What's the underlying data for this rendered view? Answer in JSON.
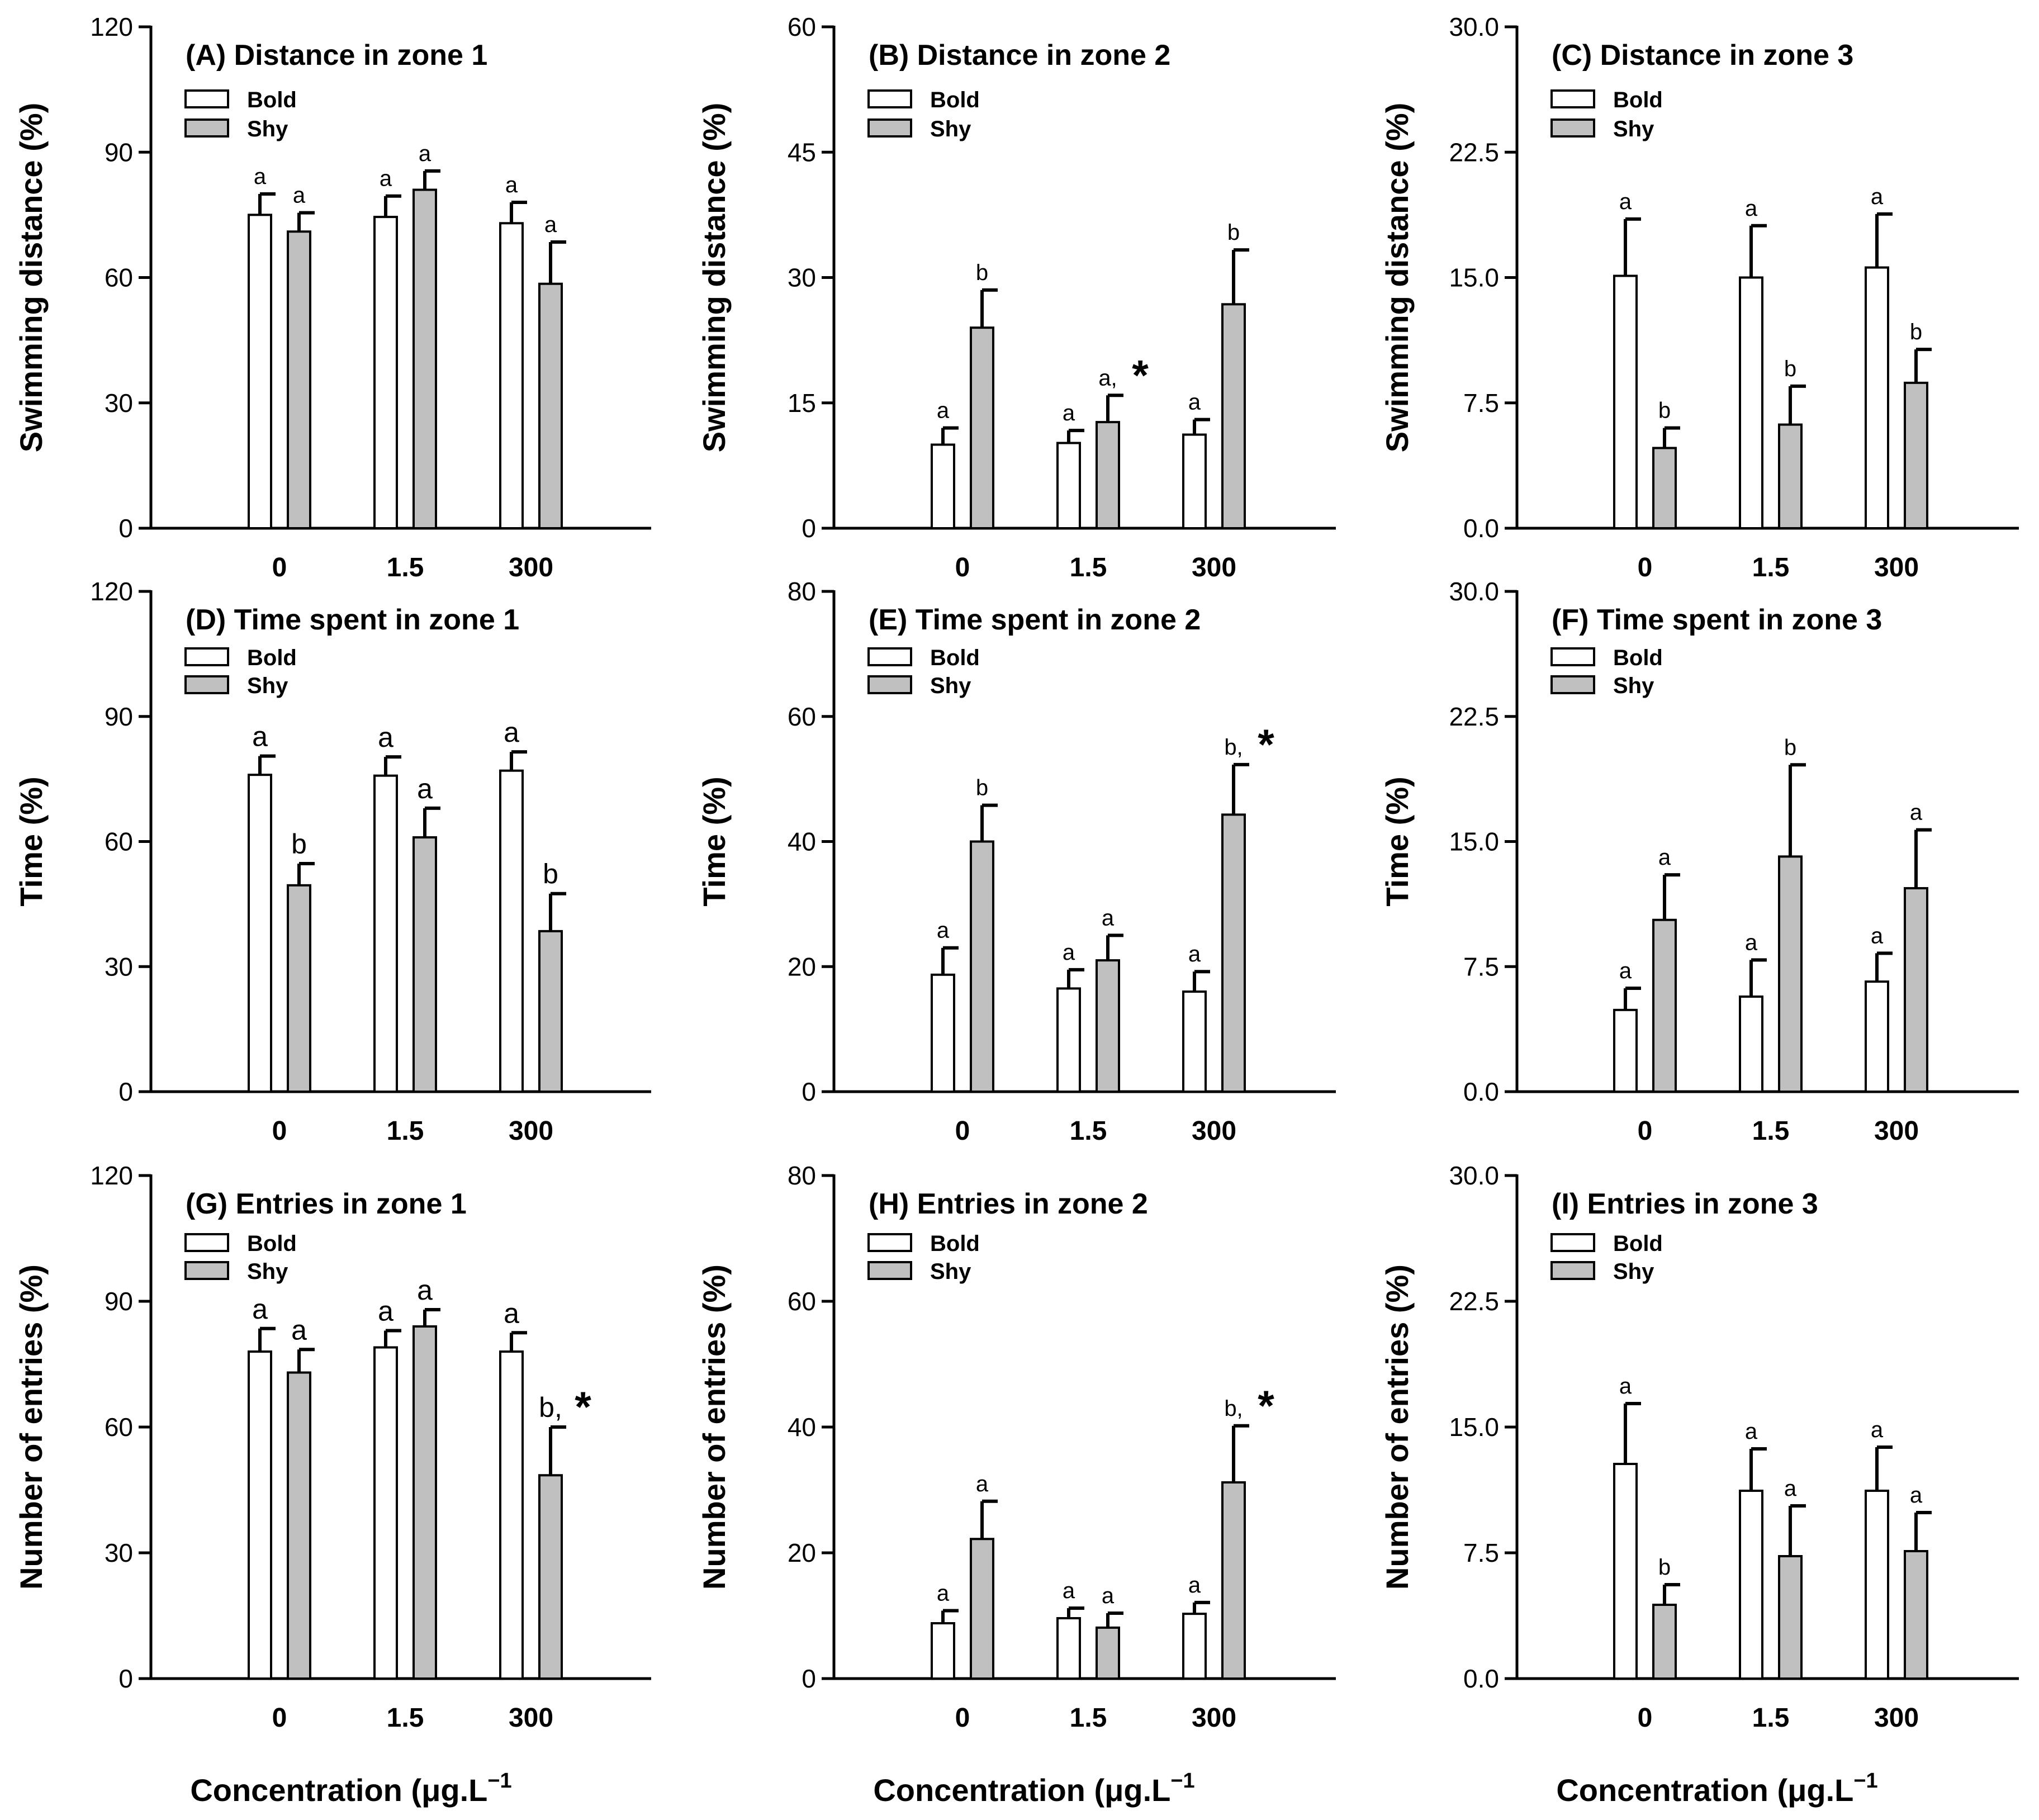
{
  "figure": {
    "xlabel": "Concentration (μg.L",
    "xlabel_sup": "−1",
    "legend": [
      "Bold",
      "Shy"
    ],
    "colors": {
      "bold": "#ffffff",
      "shy": "#c0c0c0",
      "ink": "#000000"
    }
  },
  "chart_data": [
    {
      "type": "bar",
      "panel": "A",
      "title": "(A) Distance in zone 1",
      "ylabel": "Swimming distance (%)",
      "categories": [
        "0",
        "1.5",
        "300"
      ],
      "ylim": [
        0,
        120
      ],
      "yticks": [
        "0",
        "30",
        "60",
        "90",
        "120"
      ],
      "series": [
        {
          "name": "Bold",
          "values": [
            75,
            74.5,
            73
          ],
          "errors": [
            5,
            5,
            5
          ],
          "labels": [
            "a",
            "a",
            "a"
          ]
        },
        {
          "name": "Shy",
          "values": [
            71,
            81,
            58.5
          ],
          "errors": [
            4.5,
            4.5,
            10
          ],
          "labels": [
            "a",
            "a",
            "a"
          ]
        }
      ],
      "stars": []
    },
    {
      "type": "bar",
      "panel": "B",
      "title": "(B) Distance in zone 2",
      "ylabel": "Swimming distance (%)",
      "categories": [
        "0",
        "1.5",
        "300"
      ],
      "ylim": [
        0,
        60
      ],
      "yticks": [
        "0",
        "15",
        "30",
        "45",
        "60"
      ],
      "series": [
        {
          "name": "Bold",
          "values": [
            10,
            10.2,
            11.2
          ],
          "errors": [
            2,
            1.5,
            1.8
          ],
          "labels": [
            "a",
            "a",
            "a"
          ]
        },
        {
          "name": "Shy",
          "values": [
            24,
            12.7,
            26.8
          ],
          "errors": [
            4.5,
            3.2,
            6.5
          ],
          "labels": [
            "b",
            "a,",
            "b"
          ]
        }
      ],
      "stars": [
        1
      ]
    },
    {
      "type": "bar",
      "panel": "C",
      "title": "(C) Distance in zone 3",
      "ylabel": "Swimming distance (%)",
      "categories": [
        "0",
        "1.5",
        "300"
      ],
      "ylim": [
        0,
        30
      ],
      "yticks": [
        "0.0",
        "7.5",
        "15.0",
        "22.5",
        "30.0"
      ],
      "series": [
        {
          "name": "Bold",
          "values": [
            15.1,
            15,
            15.6
          ],
          "errors": [
            3.4,
            3.1,
            3.2
          ],
          "labels": [
            "a",
            "a",
            "a"
          ]
        },
        {
          "name": "Shy",
          "values": [
            4.8,
            6.2,
            8.7
          ],
          "errors": [
            1.2,
            2.3,
            2
          ],
          "labels": [
            "b",
            "b",
            "b"
          ]
        }
      ],
      "stars": []
    },
    {
      "type": "bar",
      "panel": "D",
      "title": "(D) Time spent in zone 1",
      "ylabel": "Time (%)",
      "categories": [
        "0",
        "1.5",
        "300"
      ],
      "ylim": [
        0,
        120
      ],
      "yticks": [
        "0",
        "30",
        "60",
        "90",
        "120"
      ],
      "series": [
        {
          "name": "Bold",
          "values": [
            76,
            75.8,
            77
          ],
          "errors": [
            4.5,
            4.5,
            4.5
          ],
          "labels": [
            "a",
            "a",
            "a"
          ]
        },
        {
          "name": "Shy",
          "values": [
            49.5,
            61,
            38.5
          ],
          "errors": [
            5.2,
            7,
            9
          ],
          "labels": [
            "b",
            "a",
            "b"
          ]
        }
      ],
      "stars": []
    },
    {
      "type": "bar",
      "panel": "E",
      "title": "(E) Time spent in zone 2",
      "ylabel": "Time (%)",
      "categories": [
        "0",
        "1.5",
        "300"
      ],
      "ylim": [
        0,
        80
      ],
      "yticks": [
        "0",
        "20",
        "40",
        "60",
        "80"
      ],
      "series": [
        {
          "name": "Bold",
          "values": [
            18.7,
            16.5,
            16
          ],
          "errors": [
            4.3,
            3,
            3.2
          ],
          "labels": [
            "a",
            "a",
            "a"
          ]
        },
        {
          "name": "Shy",
          "values": [
            40,
            21,
            44.3
          ],
          "errors": [
            5.8,
            4,
            8
          ],
          "labels": [
            "b",
            "a",
            "b,"
          ]
        }
      ],
      "stars": [
        2
      ]
    },
    {
      "type": "bar",
      "panel": "F",
      "title": "(F) Time spent in zone 3",
      "ylabel": "Time (%)",
      "categories": [
        "0",
        "1.5",
        "300"
      ],
      "ylim": [
        0,
        30
      ],
      "yticks": [
        "0.0",
        "7.5",
        "15.0",
        "22.5",
        "30.0"
      ],
      "series": [
        {
          "name": "Bold",
          "values": [
            4.9,
            5.7,
            6.6
          ],
          "errors": [
            1.3,
            2.2,
            1.7
          ],
          "labels": [
            "a",
            "a",
            "a"
          ]
        },
        {
          "name": "Shy",
          "values": [
            10.3,
            14.1,
            12.2
          ],
          "errors": [
            2.7,
            5.5,
            3.5
          ],
          "labels": [
            "a",
            "b",
            "a"
          ]
        }
      ],
      "stars": []
    },
    {
      "type": "bar",
      "panel": "G",
      "title": "(G) Entries in zone 1",
      "ylabel": "Number of entries (%)",
      "categories": [
        "0",
        "1.5",
        "300"
      ],
      "ylim": [
        0,
        120
      ],
      "yticks": [
        "0",
        "30",
        "60",
        "90",
        "120"
      ],
      "series": [
        {
          "name": "Bold",
          "values": [
            78,
            79,
            78
          ],
          "errors": [
            5.5,
            4,
            4.5
          ],
          "labels": [
            "a",
            "a",
            "a"
          ]
        },
        {
          "name": "Shy",
          "values": [
            73,
            84,
            48.5
          ],
          "errors": [
            5.5,
            4,
            11.5
          ],
          "labels": [
            "a",
            "a",
            "b,"
          ]
        }
      ],
      "stars": [
        2
      ]
    },
    {
      "type": "bar",
      "panel": "H",
      "title": "(H) Entries in zone 2",
      "ylabel": "Number of entries (%)",
      "categories": [
        "0",
        "1.5",
        "300"
      ],
      "ylim": [
        0,
        80
      ],
      "yticks": [
        "0",
        "20",
        "40",
        "60",
        "80"
      ],
      "series": [
        {
          "name": "Bold",
          "values": [
            8.8,
            9.6,
            10.3
          ],
          "errors": [
            2,
            1.6,
            1.8
          ],
          "labels": [
            "a",
            "a",
            "a"
          ]
        },
        {
          "name": "Shy",
          "values": [
            22.2,
            8.1,
            31.2
          ],
          "errors": [
            6,
            2.3,
            9
          ],
          "labels": [
            "a",
            "a",
            "b,"
          ]
        }
      ],
      "stars": [
        2
      ]
    },
    {
      "type": "bar",
      "panel": "I",
      "title": "(I) Entries in zone 3",
      "ylabel": "Number of entries (%)",
      "categories": [
        "0",
        "1.5",
        "300"
      ],
      "ylim": [
        0,
        30
      ],
      "yticks": [
        "0.0",
        "7.5",
        "15.0",
        "22.5",
        "30.0"
      ],
      "series": [
        {
          "name": "Bold",
          "values": [
            12.8,
            11.2,
            11.2
          ],
          "errors": [
            3.6,
            2.5,
            2.6
          ],
          "labels": [
            "a",
            "a",
            "a"
          ]
        },
        {
          "name": "Shy",
          "values": [
            4.4,
            7.3,
            7.6
          ],
          "errors": [
            1.2,
            3,
            2.3
          ],
          "labels": [
            "b",
            "a",
            "a"
          ]
        }
      ],
      "stars": []
    }
  ]
}
